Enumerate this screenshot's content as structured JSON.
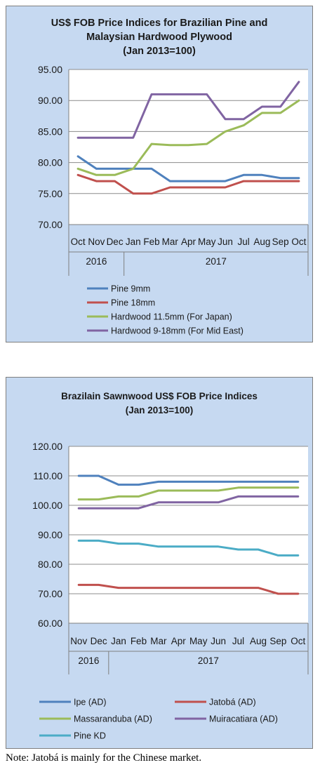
{
  "chart_data": [
    {
      "type": "line",
      "title_lines": [
        "US$ FOB Price Indices for Brazilian  Pine and",
        "Malaysian Hardwood Plywood",
        "(Jan 2013=100)"
      ],
      "x_months": [
        "Oct",
        "Nov",
        "Dec",
        "Jan",
        "Feb",
        "Mar",
        "Apr",
        "May",
        "Jun",
        "Jul",
        "Aug",
        "Sep",
        "Oct"
      ],
      "x_years": [
        "2016",
        "2017"
      ],
      "ylim": [
        70,
        95
      ],
      "y_ticks": [
        "70.00",
        "75.00",
        "80.00",
        "85.00",
        "90.00",
        "95.00"
      ],
      "y_tick_values": [
        70,
        75,
        80,
        85,
        90,
        95
      ],
      "grid": true,
      "legend_position": "bottom",
      "series": [
        {
          "name": "Pine 9mm",
          "color": "#4f81bd",
          "values": [
            81,
            79,
            79,
            79,
            79,
            77,
            77,
            77,
            77,
            78,
            78,
            77.5,
            77.5
          ]
        },
        {
          "name": "Pine 18mm",
          "color": "#c0504d",
          "values": [
            78,
            77,
            77,
            75,
            75,
            76,
            76,
            76,
            76,
            77,
            77,
            77,
            77
          ]
        },
        {
          "name": "Hardwood 11.5mm (For Japan)",
          "color": "#9bbb59",
          "values": [
            79,
            78,
            78,
            79,
            83,
            82.8,
            82.8,
            83,
            85,
            86,
            88,
            88,
            90
          ]
        },
        {
          "name": "Hardwood 9-18mm (For Mid East)",
          "color": "#8064a2",
          "values": [
            84,
            84,
            84,
            84,
            91,
            91,
            91,
            91,
            87,
            87,
            89,
            89,
            93
          ]
        }
      ]
    },
    {
      "type": "line",
      "title_lines": [
        "Brazilain Sawnwood US$ FOB Price Indices",
        "(Jan 2013=100)"
      ],
      "x_months": [
        "Nov",
        "Dec",
        "Jan",
        "Feb",
        "Mar",
        "Apr",
        "May",
        "Jun",
        "Jul",
        "Aug",
        "Sep",
        "Oct"
      ],
      "x_years": [
        "2016",
        "2017"
      ],
      "ylim": [
        60,
        120
      ],
      "y_ticks": [
        "60.00",
        "70.00",
        "80.00",
        "90.00",
        "100.00",
        "110.00",
        "120.00"
      ],
      "y_tick_values": [
        60,
        70,
        80,
        90,
        100,
        110,
        120
      ],
      "grid": true,
      "legend_position": "bottom",
      "series": [
        {
          "name": "Ipe (AD)",
          "color": "#4f81bd",
          "values": [
            110,
            110,
            107,
            107,
            108,
            108,
            108,
            108,
            108,
            108,
            108,
            108
          ]
        },
        {
          "name": "Jatobá (AD)",
          "color": "#c0504d",
          "values": [
            73,
            73,
            72,
            72,
            72,
            72,
            72,
            72,
            72,
            72,
            70,
            70
          ]
        },
        {
          "name": "Massaranduba (AD)",
          "color": "#9bbb59",
          "values": [
            102,
            102,
            103,
            103,
            105,
            105,
            105,
            105,
            106,
            106,
            106,
            106
          ]
        },
        {
          "name": "Muiracatiara (AD)",
          "color": "#8064a2",
          "values": [
            99,
            99,
            99,
            99,
            101,
            101,
            101,
            101,
            103,
            103,
            103,
            103
          ]
        },
        {
          "name": "Pine KD",
          "color": "#4bacc6",
          "values": [
            88,
            88,
            87,
            87,
            86,
            86,
            86,
            86,
            85,
            85,
            83,
            83
          ]
        }
      ]
    }
  ],
  "note": "Note: Jatobá is mainly for the Chinese market."
}
